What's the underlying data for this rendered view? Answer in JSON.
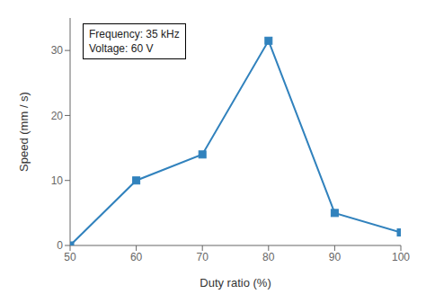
{
  "chart_data": {
    "type": "line",
    "x": [
      50,
      60,
      70,
      80,
      90,
      100
    ],
    "values": [
      0,
      10,
      14,
      31.5,
      5,
      2
    ],
    "xlabel": "Duty ratio (%)",
    "ylabel": "Speed (mm / s)",
    "xlim": [
      50,
      100
    ],
    "ylim": [
      0,
      35
    ],
    "xticks": [
      50,
      60,
      70,
      80,
      90,
      100
    ],
    "yticks": [
      0,
      10,
      20,
      30
    ],
    "annotations": [
      "Frequency: 35 kHz",
      "Voltage: 60 V"
    ],
    "marker": "square",
    "grid": false
  }
}
